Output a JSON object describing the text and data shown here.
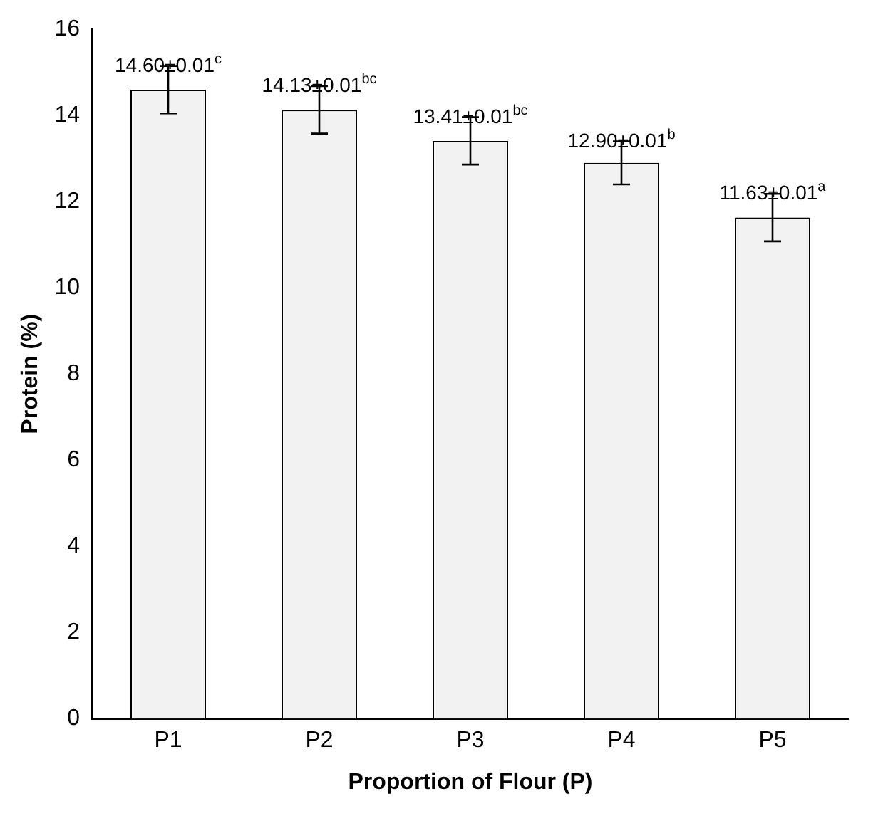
{
  "chart_data": {
    "type": "bar",
    "xlabel": "Proportion of Flour (P)",
    "ylabel": "Protein (%)",
    "categories": [
      "P1",
      "P2",
      "P3",
      "P4",
      "P5"
    ],
    "values": [
      14.6,
      14.13,
      13.41,
      12.9,
      11.63
    ],
    "errors": [
      0.55,
      0.55,
      0.55,
      0.5,
      0.55
    ],
    "value_labels": [
      "14.60±0.01$^{c}$",
      "14.13±0.01$^{bc}$",
      "13.41±0.01$^{bc}$",
      "12.90±0.01$^{b}$",
      "11.63±0.01$^{a}$"
    ],
    "color": "#f2f2f2",
    "ylim": [
      0,
      16
    ],
    "yticks": [
      0,
      2,
      4,
      6,
      8,
      10,
      12,
      14,
      16
    ],
    "grid": false,
    "legend": false
  }
}
